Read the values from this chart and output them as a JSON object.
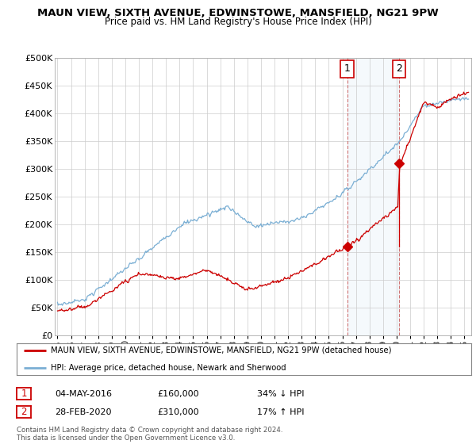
{
  "title": "MAUN VIEW, SIXTH AVENUE, EDWINSTOWE, MANSFIELD, NG21 9PW",
  "subtitle": "Price paid vs. HM Land Registry's House Price Index (HPI)",
  "legend_line1": "MAUN VIEW, SIXTH AVENUE, EDWINSTOWE, MANSFIELD, NG21 9PW (detached house)",
  "legend_line2": "HPI: Average price, detached house, Newark and Sherwood",
  "footnote": "Contains HM Land Registry data © Crown copyright and database right 2024.\nThis data is licensed under the Open Government Licence v3.0.",
  "sale1_label": "1",
  "sale1_date": "04-MAY-2016",
  "sale1_price": "£160,000",
  "sale1_hpi": "34% ↓ HPI",
  "sale2_label": "2",
  "sale2_date": "28-FEB-2020",
  "sale2_price": "£310,000",
  "sale2_hpi": "17% ↑ HPI",
  "red_color": "#cc0000",
  "blue_color": "#7bafd4",
  "shaded_color": "#ddeeff",
  "vertical_line_color": "#cc4444",
  "background_color": "#ffffff",
  "grid_color": "#cccccc",
  "ylim": [
    0,
    500000
  ],
  "yticks": [
    0,
    50000,
    100000,
    150000,
    200000,
    250000,
    300000,
    350000,
    400000,
    450000,
    500000
  ],
  "xlim_start": 1994.8,
  "xlim_end": 2025.5,
  "sale1_x": 2016.35,
  "sale2_x": 2020.17,
  "sale1_y": 160000,
  "sale2_y": 310000
}
